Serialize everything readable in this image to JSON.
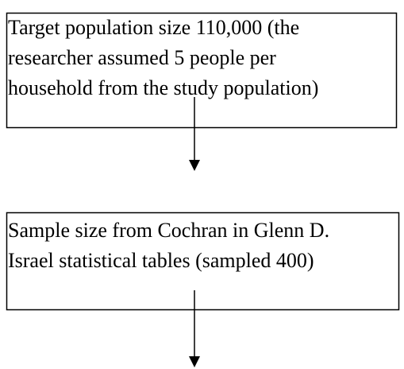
{
  "nodes": [
    {
      "lines": [
        "Target population size 110,000 (the",
        "researcher assumed 5 people per",
        "household from the study population)"
      ]
    },
    {
      "lines": [
        "Sample size from Cochran in Glenn D.",
        "Israel statistical tables (sampled 400)"
      ]
    }
  ]
}
